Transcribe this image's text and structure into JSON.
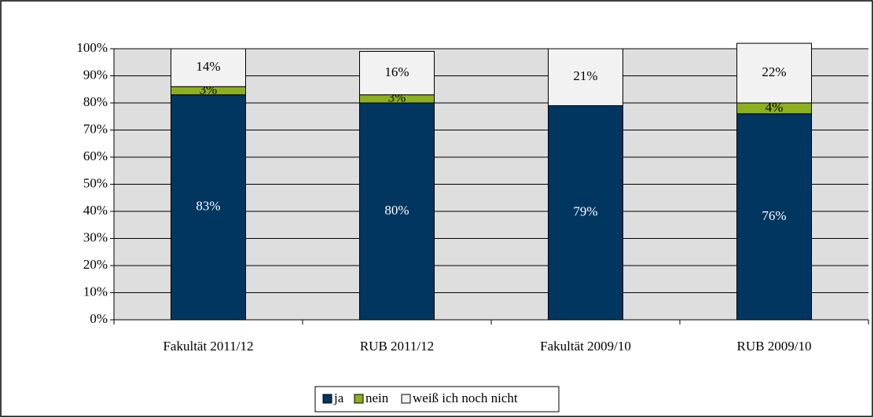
{
  "chart_data": {
    "type": "stacked_bar",
    "categories": [
      "Fakultät 2011/12",
      "RUB 2011/12",
      "Fakultät 2009/10",
      "RUB 2009/10"
    ],
    "series": [
      {
        "name": "ja",
        "color": "#003660",
        "label_color": "#ffffff",
        "values": [
          83,
          80,
          79,
          76
        ],
        "value_labels": [
          "83%",
          "80%",
          "79%",
          "76%"
        ]
      },
      {
        "name": "nein",
        "color": "#8db01e",
        "label_color": "#000000",
        "values": [
          3,
          3,
          null,
          4
        ],
        "value_labels": [
          "3%",
          "3%",
          null,
          "4%"
        ]
      },
      {
        "name": "weiß ich noch nicht",
        "color": "#f2f2f2",
        "label_color": "#000000",
        "values": [
          14,
          16,
          21,
          22
        ],
        "value_labels": [
          "14%",
          "16%",
          "21%",
          "22%"
        ]
      }
    ],
    "ylim": [
      0,
      100
    ],
    "yticks": [
      {
        "value": 0,
        "label": "0%"
      },
      {
        "value": 10,
        "label": "10%"
      },
      {
        "value": 20,
        "label": "20%"
      },
      {
        "value": 30,
        "label": "30%"
      },
      {
        "value": 40,
        "label": "40%"
      },
      {
        "value": 50,
        "label": "50%"
      },
      {
        "value": 60,
        "label": "60%"
      },
      {
        "value": 70,
        "label": "70%"
      },
      {
        "value": 80,
        "label": "80%"
      },
      {
        "value": 90,
        "label": "90%"
      },
      {
        "value": 100,
        "label": "100%"
      }
    ],
    "grid": true,
    "plot_background": "#dedede",
    "legend": "bottom"
  }
}
